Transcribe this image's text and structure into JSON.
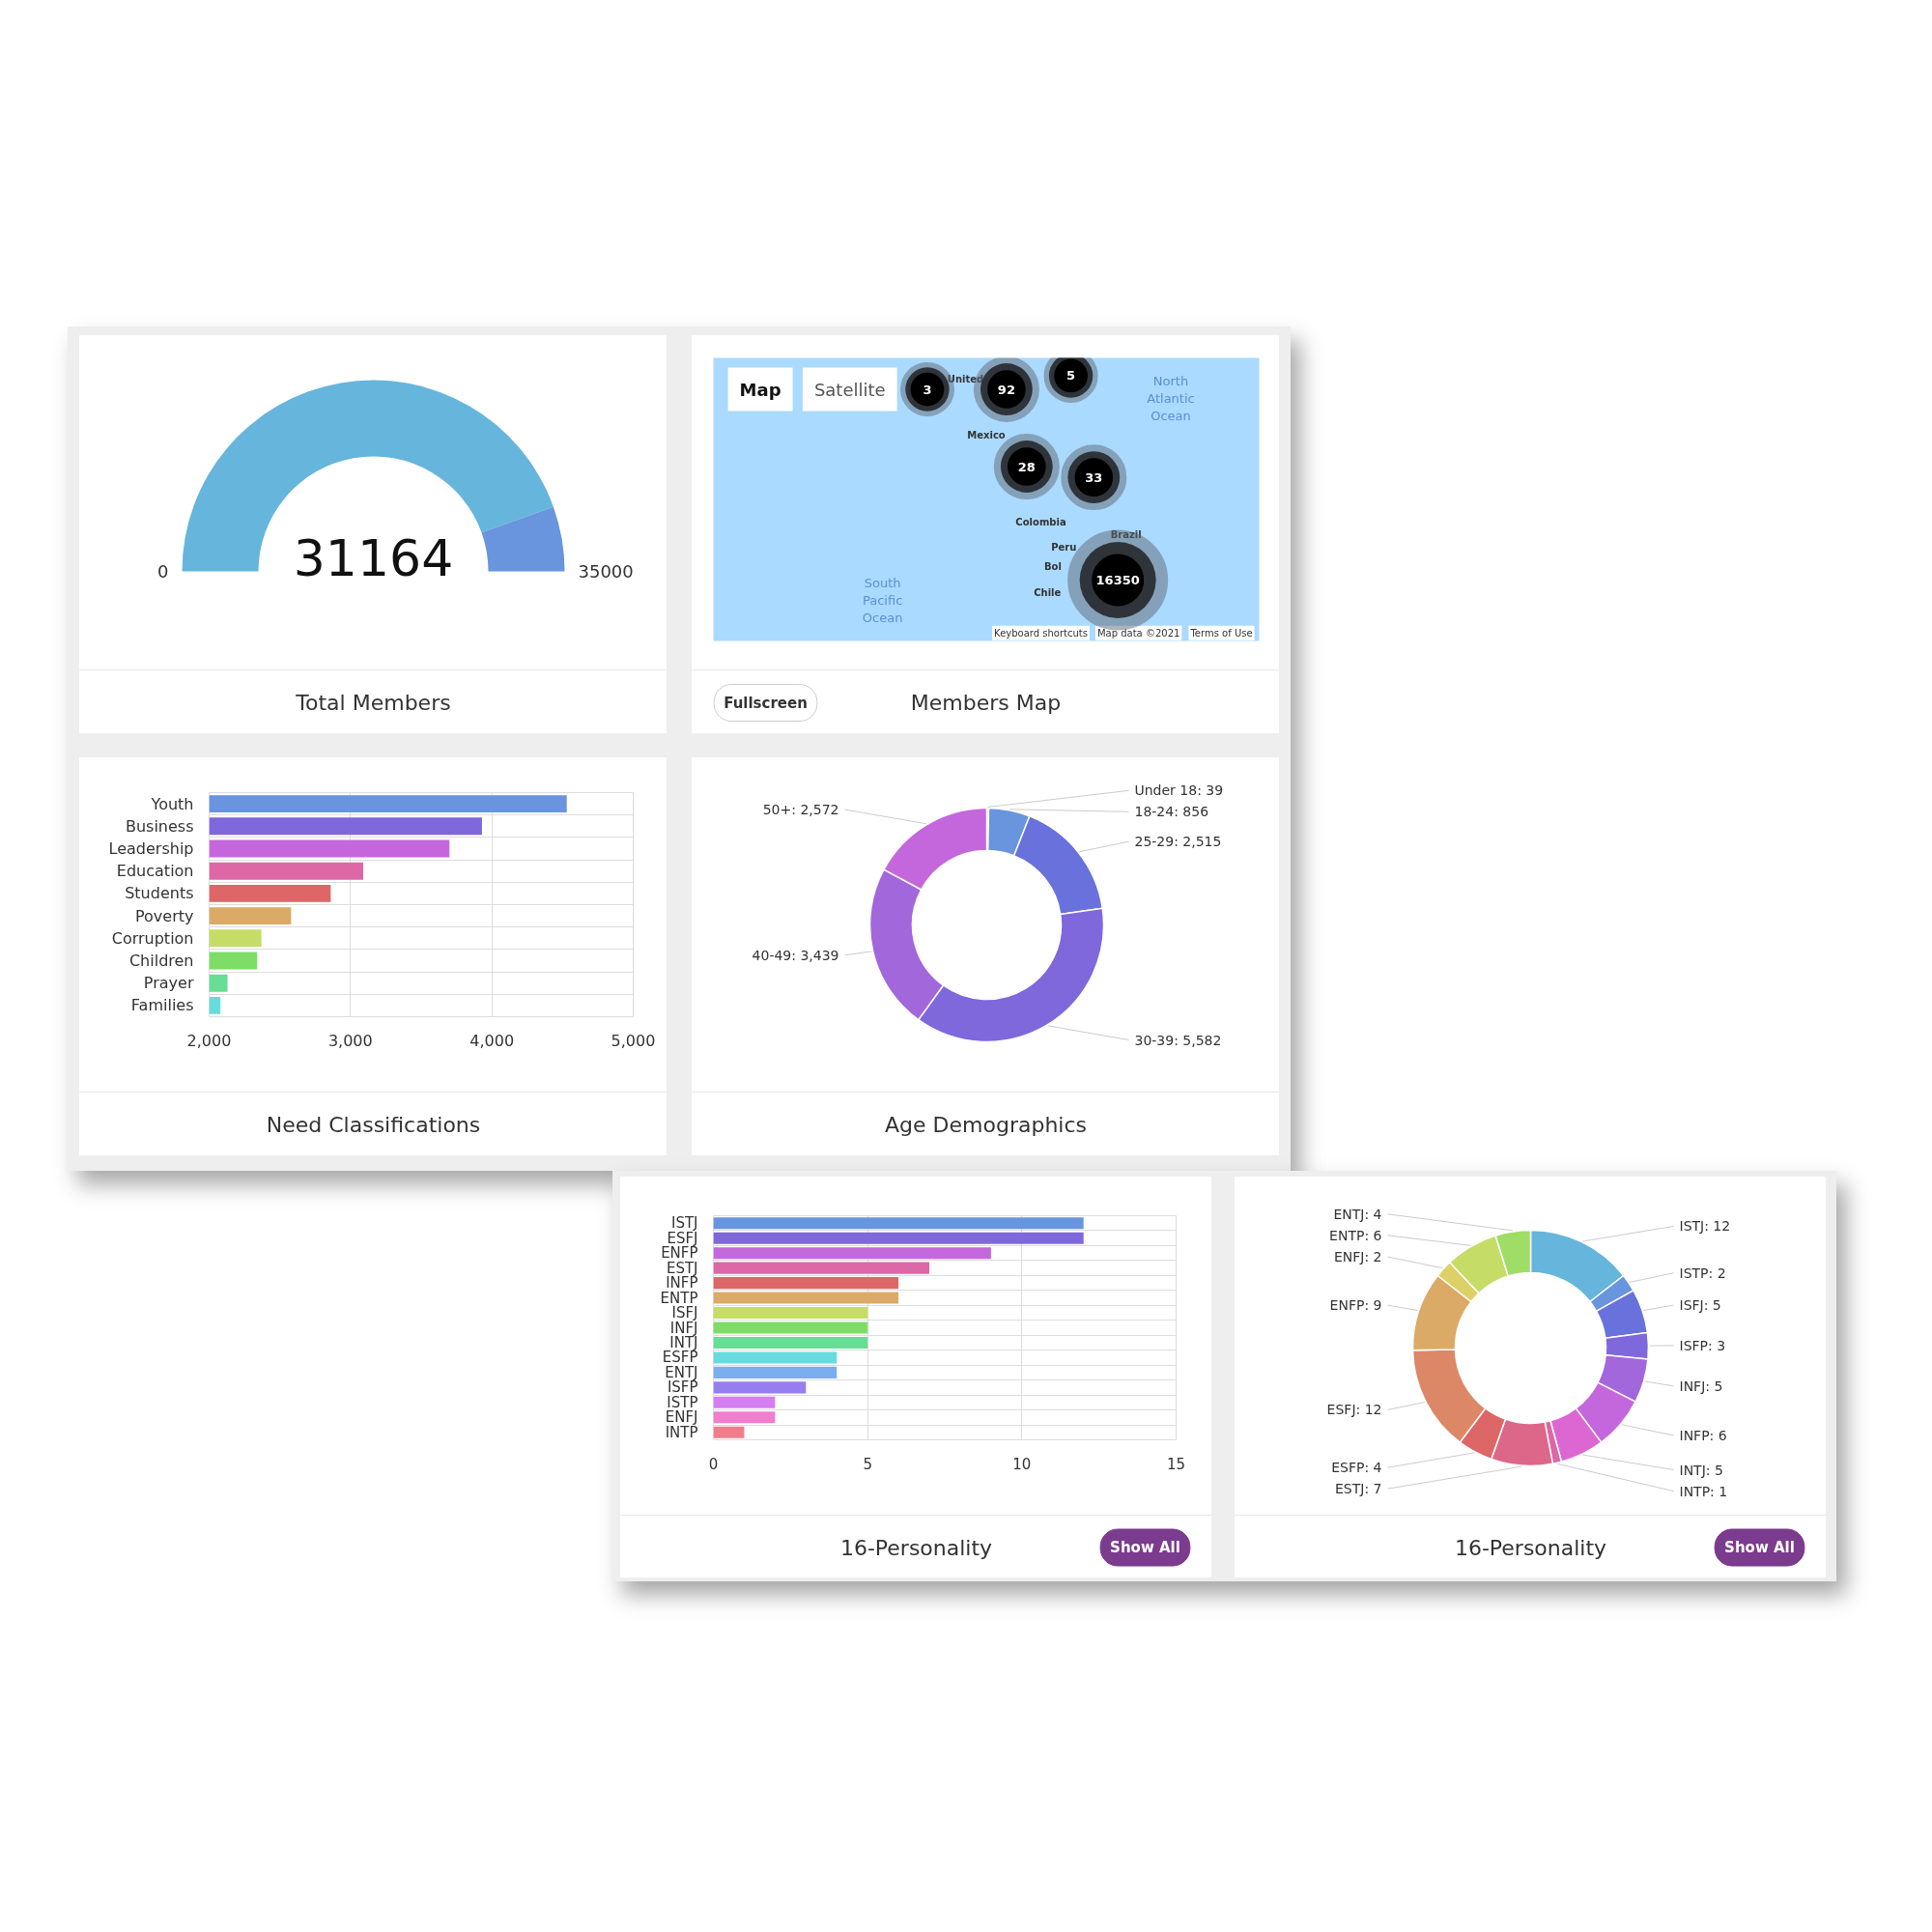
{
  "chart_data": [
    {
      "type": "donut",
      "title": "Total Members",
      "categories": [
        null,
        null
      ],
      "values": [
        31164,
        3836
      ],
      "colors": [
        "#66b5dc",
        "#6895dd"
      ],
      "value_labels": [
        "31164",
        null
      ],
      "annotations": [
        "0",
        "35000"
      ]
    },
    {
      "type": "other",
      "title": "Members Map",
      "values": [
        3,
        92,
        5,
        28,
        33,
        16350
      ],
      "data_labels": true,
      "annotations": [
        "Map",
        "Satellite",
        "United",
        "Mexico",
        "Colombia",
        "Peru",
        "Brazil",
        "Bol",
        "Chile",
        "North Atlantic Ocean",
        "South Pacific Ocean",
        "Keyboard shortcuts",
        "Map data ©2021",
        "Terms of Use",
        "Fullscreen"
      ]
    },
    {
      "type": "bar",
      "orientation": "horizontal",
      "title": "Need Classifications",
      "categories": [
        "Youth",
        "Business",
        "Leadership",
        "Education",
        "Students",
        "Poverty",
        "Corruption",
        "Children",
        "Prayer",
        "Families"
      ],
      "values": [
        4530,
        3930,
        3700,
        3090,
        2860,
        2580,
        2370,
        2340,
        2130,
        2080
      ],
      "colors": [
        "#6895dd",
        "#7f67dc",
        "#c567dc",
        "#dd67a7",
        "#dd6767",
        "#dcaa67",
        "#c5dd67",
        "#7ddd67",
        "#67dd95",
        "#67dddb"
      ],
      "xlim": [
        2000,
        5000
      ],
      "xticks": [
        {
          "value": 2000,
          "label": "2,000"
        },
        {
          "value": 3000,
          "label": "3,000"
        },
        {
          "value": 4000,
          "label": "4,000"
        },
        {
          "value": 5000,
          "label": "5,000"
        }
      ],
      "grid": true
    },
    {
      "type": "donut",
      "title": "Age Demographics",
      "values": [
        39,
        856,
        2515,
        5582,
        3439,
        2572
      ],
      "value_labels": [
        "Under 18: 39",
        "18-24: 856",
        "25-29: 2,515",
        "30-39: 5,582",
        "40-49: 3,439",
        "50+: 2,572"
      ],
      "colors": [
        "#66b5dc",
        "#6895dd",
        "#6871dc",
        "#7f67dc",
        "#a367dc",
        "#c567dc"
      ]
    },
    {
      "type": "bar",
      "orientation": "horizontal",
      "title": "16-Personality",
      "categories": [
        "ISTJ",
        "ESFJ",
        "ENFP",
        "ESTJ",
        "INFP",
        "ENTP",
        "ISFJ",
        "INFJ",
        "INTJ",
        "ESFP",
        "ENTJ",
        "ISFP",
        "ISTP",
        "ENFJ",
        "INTP"
      ],
      "values": [
        12,
        12,
        9,
        7,
        6,
        6,
        5,
        5,
        5,
        4,
        4,
        3,
        2,
        2,
        1
      ],
      "colors": [
        "#6895dd",
        "#7f67dc",
        "#c567dc",
        "#dd67a7",
        "#dd6767",
        "#dcaa67",
        "#c5dd67",
        "#7ddd67",
        "#67dd95",
        "#67dbdd",
        "#7aaeef",
        "#957ef0",
        "#d47ef0",
        "#f07ecc",
        "#ef7e8a"
      ],
      "xlim": [
        0,
        15
      ],
      "xticks": [
        0,
        5,
        10,
        15
      ],
      "grid": true,
      "annotations": [
        "Show All"
      ]
    },
    {
      "type": "donut",
      "title": "16-Personality",
      "values": [
        12,
        2,
        5,
        3,
        5,
        6,
        5,
        1,
        7,
        4,
        12,
        9,
        2,
        6,
        4
      ],
      "value_labels": [
        "ISTJ: 12",
        "ISTP: 2",
        "ISFJ: 5",
        "ISFP: 3",
        "INFJ: 5",
        "INFP: 6",
        "INTJ: 5",
        "INTP: 1",
        "ESTJ: 7",
        "ESFP: 4",
        "ESFJ: 12",
        "ENFP: 9",
        "ENFJ: 2",
        "ENTP: 6",
        "ENTJ: 4"
      ],
      "colors": [
        "#66b5dc",
        "#6895dd",
        "#6871dc",
        "#7f67dc",
        "#a367dc",
        "#c567dc",
        "#dd67d2",
        "#dd67a7",
        "#dd6788",
        "#dd6767",
        "#dc8867",
        "#dcaa67",
        "#dcd067",
        "#c5dd67",
        "#9fdd67"
      ],
      "annotations": [
        "Show All"
      ]
    }
  ]
}
